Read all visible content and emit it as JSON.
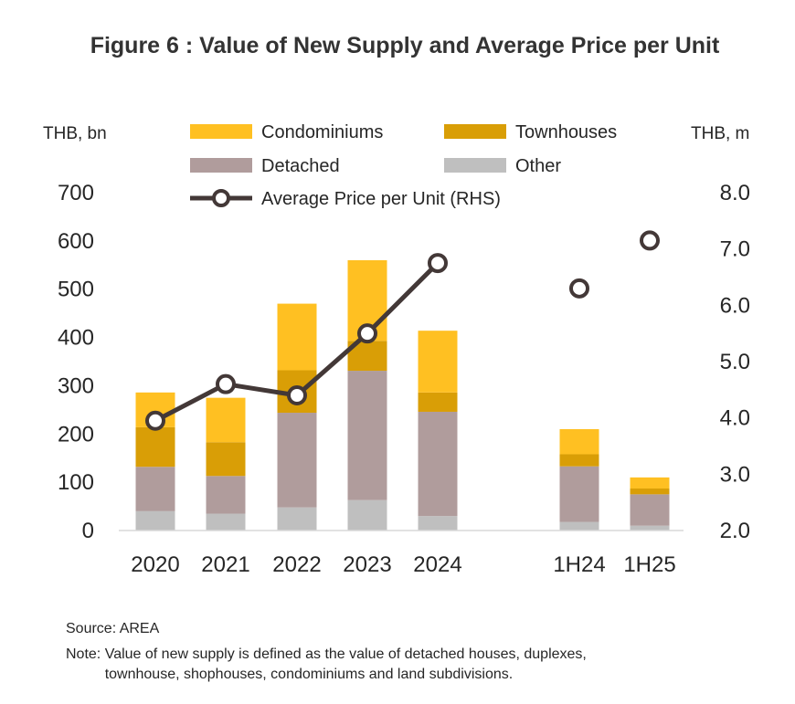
{
  "chart_data": {
    "type": "bar",
    "stacked": true,
    "title": "Figure 6 : Value of New Supply and Average Price per Unit",
    "left_axis_unit": "THB, bn",
    "right_axis_unit": "THB, m",
    "categories": [
      "2020",
      "2021",
      "2022",
      "2023",
      "2024",
      "",
      "1H24",
      "1H25"
    ],
    "left_ticks": [
      "0",
      "100",
      "200",
      "300",
      "400",
      "500",
      "600",
      "700"
    ],
    "right_ticks": [
      "2.0",
      "3.0",
      "4.0",
      "5.0",
      "6.0",
      "7.0",
      "8.0"
    ],
    "ylim": [
      0,
      700
    ],
    "y2lim": [
      2.0,
      8.0
    ],
    "series": [
      {
        "name": "Other",
        "color": "#bfbfbf",
        "values": [
          40,
          35,
          48,
          63,
          30,
          null,
          18,
          10
        ]
      },
      {
        "name": "Detached",
        "color": "#b09c9c",
        "values": [
          92,
          78,
          196,
          268,
          216,
          null,
          115,
          65
        ]
      },
      {
        "name": "Townhouses",
        "color": "#d99e06",
        "values": [
          82,
          70,
          88,
          62,
          40,
          null,
          25,
          12
        ]
      },
      {
        "name": "Condominiums",
        "color": "#ffc022",
        "values": [
          72,
          92,
          138,
          167,
          128,
          null,
          52,
          23
        ]
      }
    ],
    "line_series": {
      "name": "Average Price per Unit (RHS)",
      "color": "#433837",
      "values": [
        3.95,
        4.6,
        4.4,
        5.5,
        6.75,
        null,
        6.3,
        7.15
      ],
      "connected_through_index": 4
    },
    "legend": [
      {
        "label": "Condominiums",
        "color": "#ffc022",
        "kind": "box"
      },
      {
        "label": "Townhouses",
        "color": "#d99e06",
        "kind": "box"
      },
      {
        "label": "Detached",
        "color": "#b09c9c",
        "kind": "box"
      },
      {
        "label": "Other",
        "color": "#bfbfbf",
        "kind": "box"
      },
      {
        "label": "Average Price per Unit (RHS)",
        "color": "#433837",
        "kind": "line"
      }
    ],
    "legend_placement": "top-center",
    "grid": false
  },
  "footnotes": {
    "source": "Source: AREA",
    "note_prefix": "Note:",
    "note_text": "Value of new supply is defined as the value of detached houses, duplexes, townhouse, shophouses, condominiums and land subdivisions."
  }
}
